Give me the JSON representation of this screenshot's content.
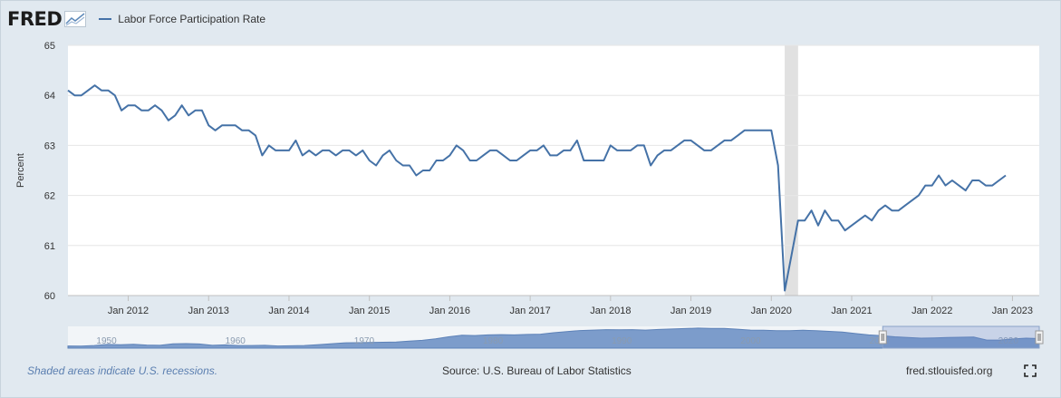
{
  "header": {
    "logo_text": "FRED",
    "logo_icon": "trend-graph-icon"
  },
  "chart_data": {
    "type": "line",
    "title": "",
    "legend_position": "top-left",
    "grid": true,
    "xlabel": "",
    "ylabel": "Percent",
    "ylim": [
      60,
      65
    ],
    "yticks": [
      "60",
      "61",
      "62",
      "63",
      "64",
      "65"
    ],
    "xlim": [
      "2011-04-01",
      "2023-05-01"
    ],
    "xticks": [
      "Jan 2012",
      "Jan 2013",
      "Jan 2014",
      "Jan 2015",
      "Jan 2016",
      "Jan 2017",
      "Jan 2018",
      "Jan 2019",
      "Jan 2020",
      "Jan 2021",
      "Jan 2022",
      "Jan 2023"
    ],
    "recessions": [
      {
        "start": "2020-03-01",
        "end": "2020-04-01"
      }
    ],
    "series": [
      {
        "name": "Labor Force Participation Rate",
        "color": "#4572a7",
        "start": "2011-04-01",
        "frequency": "monthly",
        "values": [
          64.1,
          64.0,
          64.0,
          64.1,
          64.2,
          64.1,
          64.1,
          64.0,
          63.7,
          63.8,
          63.8,
          63.7,
          63.7,
          63.8,
          63.7,
          63.5,
          63.6,
          63.8,
          63.6,
          63.7,
          63.7,
          63.4,
          63.3,
          63.4,
          63.4,
          63.4,
          63.3,
          63.3,
          63.2,
          62.8,
          63.0,
          62.9,
          62.9,
          62.9,
          63.1,
          62.8,
          62.9,
          62.8,
          62.9,
          62.9,
          62.8,
          62.9,
          62.9,
          62.8,
          62.9,
          62.7,
          62.6,
          62.8,
          62.9,
          62.7,
          62.6,
          62.6,
          62.4,
          62.5,
          62.5,
          62.7,
          62.7,
          62.8,
          63.0,
          62.9,
          62.7,
          62.7,
          62.8,
          62.9,
          62.9,
          62.8,
          62.7,
          62.7,
          62.8,
          62.9,
          62.9,
          63.0,
          62.8,
          62.8,
          62.9,
          62.9,
          63.1,
          62.7,
          62.7,
          62.7,
          62.7,
          63.0,
          62.9,
          62.9,
          62.9,
          63.0,
          63.0,
          62.6,
          62.8,
          62.9,
          62.9,
          63.0,
          63.1,
          63.1,
          63.0,
          62.9,
          62.9,
          63.0,
          63.1,
          63.1,
          63.2,
          63.3,
          63.3,
          63.3,
          63.3,
          63.3,
          62.6,
          60.1,
          60.8,
          61.5,
          61.5,
          61.7,
          61.4,
          61.7,
          61.5,
          61.5,
          61.3,
          61.4,
          61.5,
          61.6,
          61.5,
          61.7,
          61.8,
          61.7,
          61.7,
          61.8,
          61.9,
          62.0,
          62.2,
          62.2,
          62.4,
          62.2,
          62.3,
          62.2,
          62.1,
          62.3,
          62.3,
          62.2,
          62.2,
          62.3,
          62.4
        ]
      }
    ]
  },
  "navigator": {
    "labels": [
      "1950",
      "1960",
      "1970",
      "1980",
      "1990",
      "2000",
      "2010",
      "2020"
    ],
    "xlim": [
      1948,
      2023.4
    ],
    "selection": [
      2011.25,
      2023.4
    ],
    "values": [
      59.0,
      58.9,
      59.2,
      59.7,
      59.6,
      59.8,
      59.4,
      59.3,
      60.0,
      60.1,
      59.9,
      59.3,
      59.5,
      59.2,
      59.2,
      59.3,
      59.0,
      59.1,
      59.2,
      59.6,
      60.0,
      60.4,
      60.5,
      60.6,
      60.7,
      60.8,
      61.2,
      61.6,
      62.3,
      63.2,
      63.9,
      63.8,
      64.1,
      64.2,
      64.1,
      64.3,
      64.4,
      65.1,
      65.6,
      66.1,
      66.3,
      66.5,
      66.4,
      66.5,
      66.3,
      66.6,
      66.8,
      67.0,
      67.2,
      67.1,
      67.1,
      66.7,
      66.3,
      66.2,
      66.0,
      66.0,
      66.2,
      66.0,
      65.7,
      65.4,
      64.7,
      64.1,
      63.7,
      63.2,
      62.9,
      62.6,
      62.7,
      62.9,
      63.0,
      63.1,
      61.7,
      61.7,
      62.2,
      62.6,
      62.4
    ],
    "ylim": [
      58,
      68
    ]
  },
  "footer": {
    "recession_note": "Shaded areas indicate U.S. recessions.",
    "source": "Source: U.S. Bureau of Labor Statistics",
    "site": "fred.stlouisfed.org",
    "fullscreen_icon": "fullscreen-icon"
  }
}
